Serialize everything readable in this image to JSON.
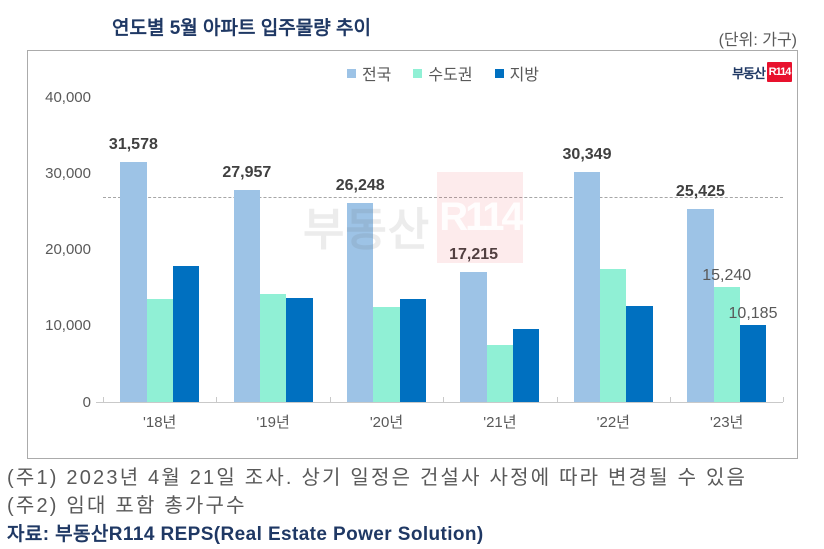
{
  "header": {
    "title": "연도별 5월 아파트 입주물량 추이",
    "unit": "(단위: 가구)"
  },
  "logo": {
    "brand": "부동산",
    "badge": "R114"
  },
  "watermark": {
    "text": "부동산",
    "badge": "R114"
  },
  "chart_data": {
    "type": "bar",
    "title": "연도별 5월 아파트 입주물량 추이",
    "unit_label": "(단위: 가구)",
    "categories": [
      "'18년",
      "'19년",
      "'20년",
      "'21년",
      "'22년",
      "'23년"
    ],
    "series": [
      {
        "name": "전국",
        "key": "national",
        "color": "#9DC3E6",
        "values": [
          31578,
          27957,
          26248,
          17215,
          30349,
          25425
        ],
        "labeled": [
          true,
          true,
          true,
          true,
          true,
          true
        ]
      },
      {
        "name": "수도권",
        "key": "metro",
        "color": "#90F0D5",
        "values": [
          13600,
          14250,
          12600,
          7500,
          17600,
          15240
        ],
        "labeled": [
          false,
          false,
          false,
          false,
          false,
          true
        ]
      },
      {
        "name": "지방",
        "key": "regional",
        "color": "#0070C0",
        "values": [
          17978,
          13707,
          13648,
          9715,
          12749,
          10185
        ],
        "labeled": [
          false,
          false,
          false,
          false,
          false,
          true
        ]
      }
    ],
    "ylim": [
      0,
      40000
    ],
    "y_ticks": [
      0,
      10000,
      20000,
      30000,
      40000
    ],
    "reference_line": {
      "value": 27000,
      "style": "dashed",
      "color": "#A6A6A6"
    },
    "legend_position": "top-center",
    "grid": false
  },
  "footnotes": {
    "note1": "(주1) 2023년 4월 21일 조사. 상기 일정은 건설사 사정에 따라 변경될 수 있음",
    "note2": "(주2) 임대 포함 총가구수",
    "source": "자료: 부동산R114 REPS(Real Estate Power Solution)"
  }
}
